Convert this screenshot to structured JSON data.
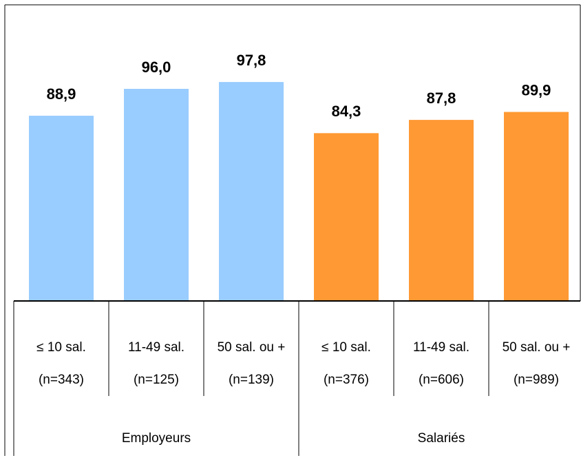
{
  "chart_data": {
    "type": "bar",
    "series": [
      {
        "name": "Employeurs",
        "color": "#99ccff",
        "categories": [
          "≤ 10 sal.",
          "11-49 sal.",
          "50 sal. ou +"
        ],
        "sample_labels": [
          "(n=343)",
          "(n=125)",
          "(n=139)"
        ],
        "values": [
          88.9,
          96.0,
          97.8
        ],
        "value_labels": [
          "88,9",
          "96,0",
          "97,8"
        ]
      },
      {
        "name": "Salariés",
        "color": "#ff9933",
        "categories": [
          "≤ 10 sal.",
          "11-49 sal.",
          "50 sal. ou +"
        ],
        "sample_labels": [
          "(n=376)",
          "(n=606)",
          "(n=989)"
        ],
        "values": [
          84.3,
          87.8,
          89.9
        ],
        "value_labels": [
          "84,3",
          "87,8",
          "89,9"
        ]
      }
    ],
    "ylim": [
      40,
      100
    ]
  }
}
